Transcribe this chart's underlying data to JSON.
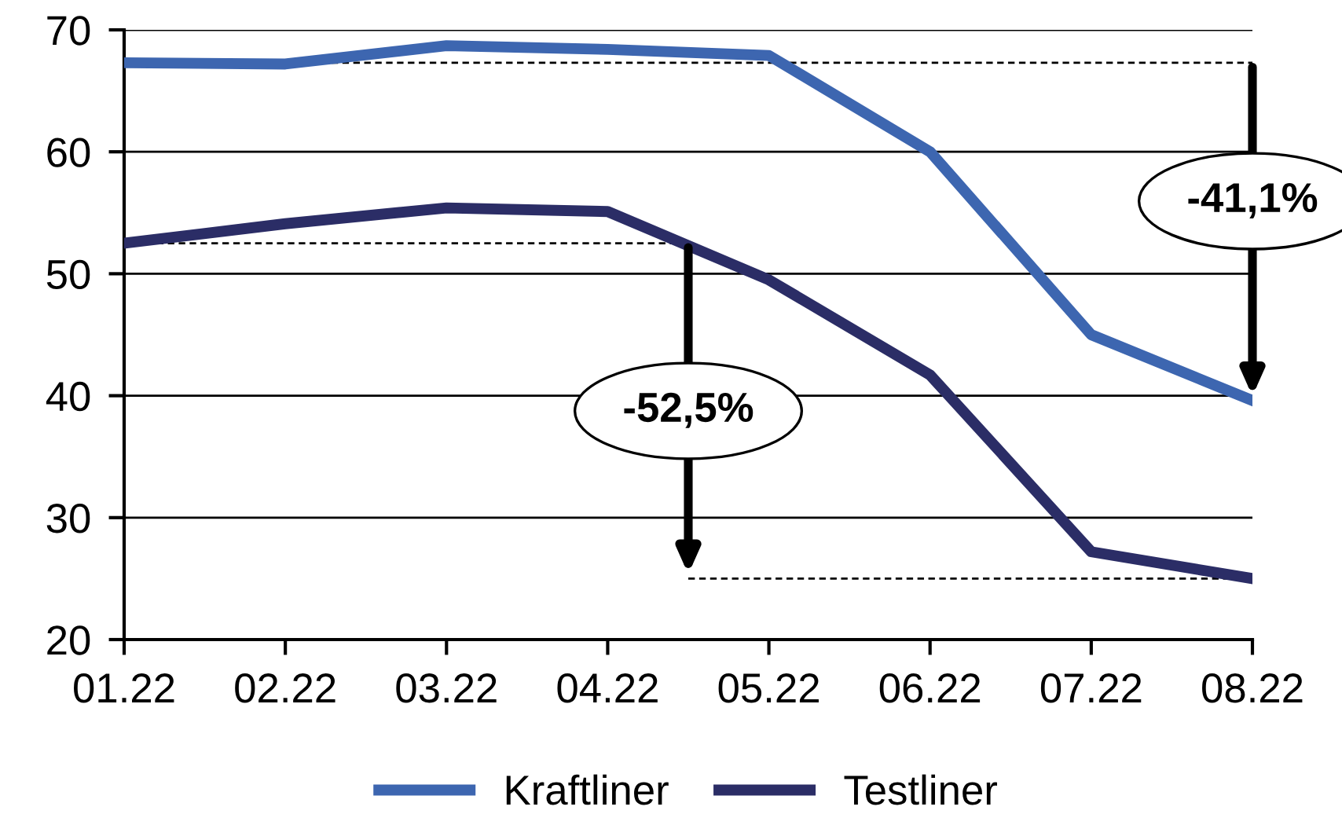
{
  "chart_data": {
    "type": "line",
    "categories": [
      "01.22",
      "02.22",
      "03.22",
      "04.22",
      "05.22",
      "06.22",
      "07.22",
      "08.22"
    ],
    "series": [
      {
        "name": "Kraftliner",
        "color": "#3d66b0",
        "values": [
          67.3,
          67.2,
          68.7,
          68.4,
          67.9,
          60.0,
          45.0,
          39.6
        ]
      },
      {
        "name": "Testliner",
        "color": "#2b2d66",
        "values": [
          52.5,
          54.1,
          55.4,
          55.1,
          49.5,
          41.7,
          27.2,
          25.0
        ]
      }
    ],
    "ylim": [
      20,
      70
    ],
    "yticks": [
      20,
      30,
      40,
      50,
      60,
      70
    ],
    "grid": "y",
    "legend": "bottom",
    "marker": "none",
    "line_style": "solid",
    "ref_lines": [
      {
        "axis": "y",
        "value": 67.3,
        "color": "#000000",
        "line_style": "dashed"
      },
      {
        "axis": "y",
        "value": 52.5,
        "color": "#000000",
        "line_style": "dashed"
      },
      {
        "axis": "y",
        "value": 25.0,
        "color": "#000000",
        "line_style": "dashed"
      }
    ],
    "annotations": [
      "-41,1%",
      "-52,5%"
    ]
  }
}
